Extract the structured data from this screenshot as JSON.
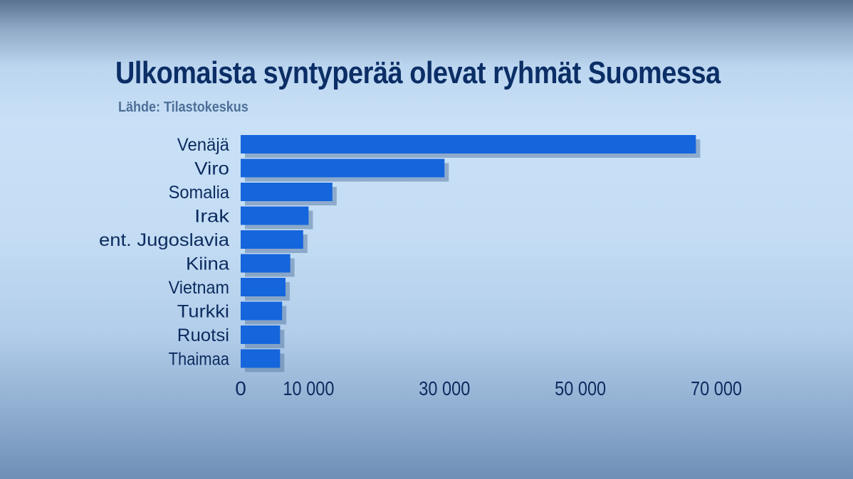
{
  "chart_data": {
    "type": "bar",
    "orientation": "horizontal",
    "title": "Ulkomaista syntyperää olevat ryhmät Suomessa",
    "subtitle": "Lähde: Tilastokeskus",
    "categories": [
      "Venäjä",
      "Viro",
      "Somalia",
      "Irak",
      "ent. Jugoslavia",
      "Kiina",
      "Vietnam",
      "Turkki",
      "Ruotsi",
      "Thaimaa"
    ],
    "values": [
      67000,
      30000,
      13500,
      10000,
      9200,
      7300,
      6600,
      6100,
      5800,
      5800
    ],
    "xticks": [
      "0",
      "10 000",
      "30 000",
      "50 000",
      "70 000"
    ],
    "xtick_values": [
      0,
      10000,
      30000,
      50000,
      70000
    ],
    "xlim": [
      0,
      70000
    ],
    "bar_color": "#1565dc",
    "title_color": "#0b2e66",
    "subtitle_color": "#4f6f98",
    "grid": false,
    "legend": "none"
  }
}
